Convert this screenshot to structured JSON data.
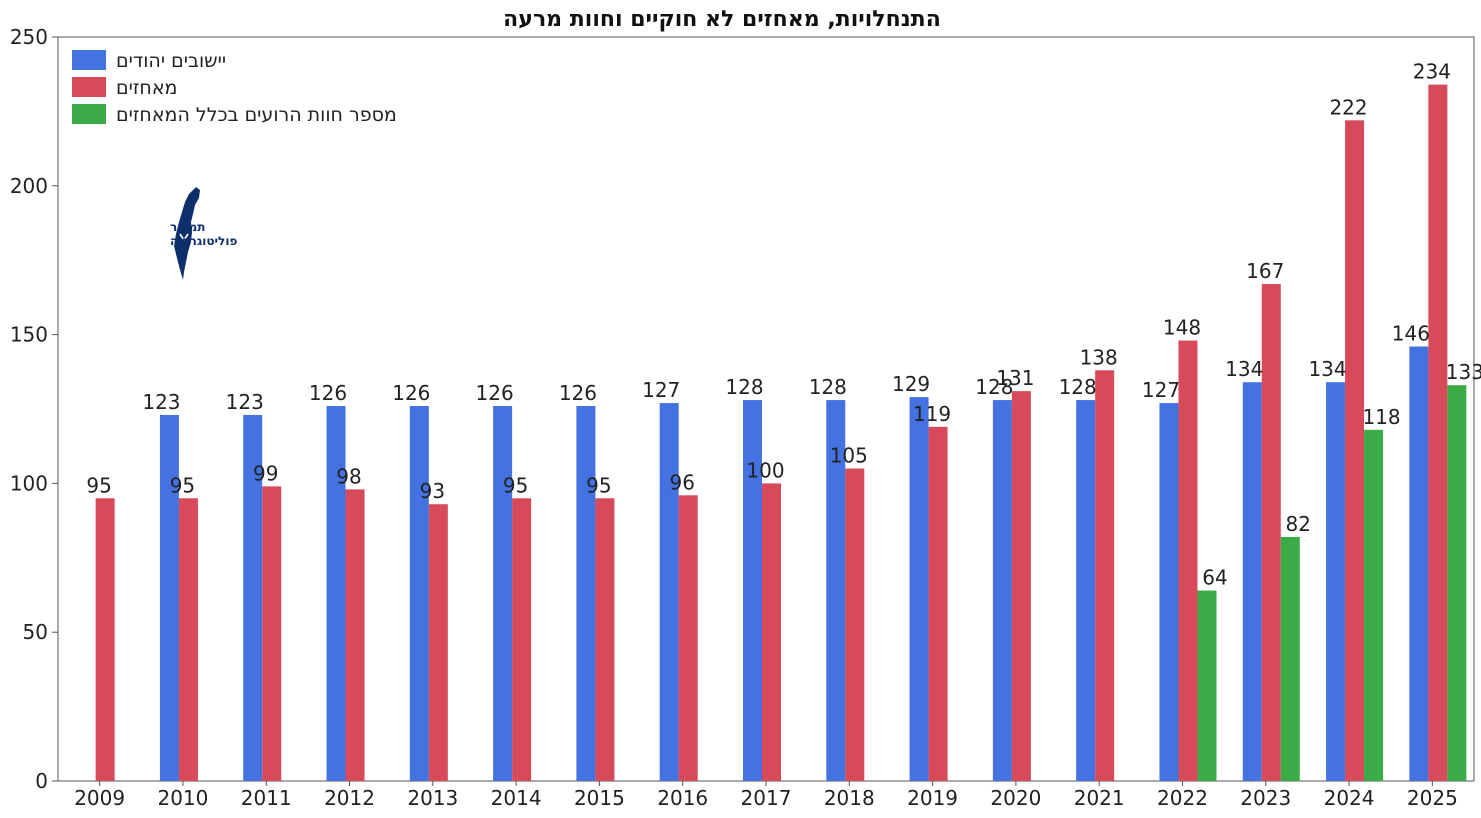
{
  "chart_data": {
    "type": "bar",
    "title": "התנחלויות, מאחזים לא חוקיים וחוות מרעה",
    "xlabel": "",
    "ylabel": "",
    "ylim": [
      0,
      250
    ],
    "yticks": [
      0,
      50,
      100,
      150,
      200,
      250
    ],
    "grid": false,
    "legend_position": "top-left",
    "categories": [
      "2009",
      "2010",
      "2011",
      "2012",
      "2013",
      "2014",
      "2015",
      "2016",
      "2017",
      "2018",
      "2019",
      "2020",
      "2021",
      "2022",
      "2023",
      "2024",
      "2025"
    ],
    "series": [
      {
        "name": "יישובים יהודים",
        "color": "#4472e0",
        "values": [
          null,
          123,
          123,
          126,
          126,
          126,
          126,
          127,
          128,
          128,
          129,
          128,
          128,
          127,
          134,
          134,
          146
        ]
      },
      {
        "name": "מאחזים",
        "color": "#d64a5a",
        "values": [
          95,
          95,
          99,
          98,
          93,
          95,
          95,
          96,
          100,
          105,
          119,
          131,
          138,
          148,
          167,
          222,
          234
        ]
      },
      {
        "name": "מספר חוות הרועים  בכלל המאחזים",
        "color": "#3aab47",
        "values": [
          null,
          null,
          null,
          null,
          null,
          null,
          null,
          null,
          null,
          null,
          null,
          null,
          null,
          64,
          82,
          118,
          133
        ]
      }
    ]
  },
  "logo": {
    "icon": "israel-map-icon",
    "line1": "תמרור",
    "line2": "פוליטוגרפיה",
    "color": "#0d2f6b"
  }
}
